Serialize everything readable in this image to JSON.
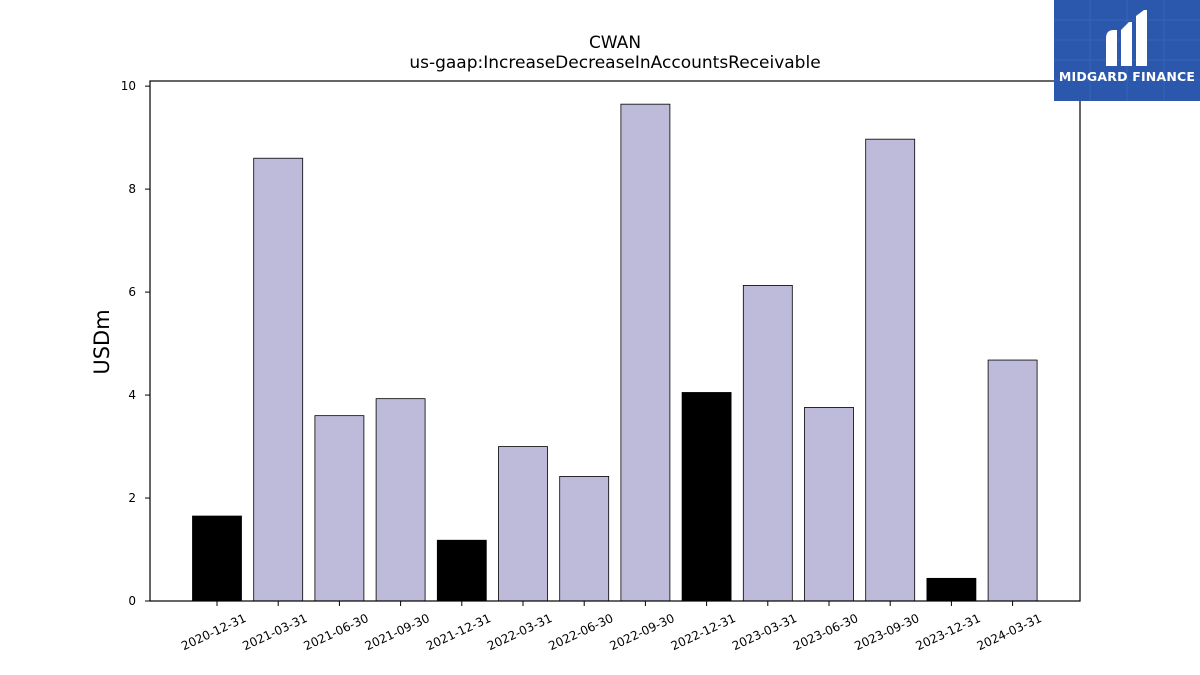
{
  "chart_data": {
    "type": "bar",
    "title": "CWAN",
    "subtitle": "us-gaap:IncreaseDecreaseInAccountsReceivable",
    "xlabel": "",
    "ylabel": "USDm",
    "ylim": [
      0,
      10
    ],
    "yticks": [
      0,
      2,
      4,
      6,
      8,
      10
    ],
    "grid": false,
    "categories": [
      "2020-12-31",
      "2021-03-31",
      "2021-06-30",
      "2021-09-30",
      "2021-12-31",
      "2022-03-31",
      "2022-06-30",
      "2022-09-30",
      "2022-12-31",
      "2023-03-31",
      "2023-06-30",
      "2023-09-30",
      "2023-12-31",
      "2024-03-31"
    ],
    "values": [
      1.65,
      8.6,
      3.6,
      3.93,
      1.18,
      3.0,
      2.42,
      9.65,
      4.05,
      6.13,
      3.76,
      8.97,
      0.44,
      4.68
    ],
    "bar_colors": [
      "#000000",
      "#bebbda",
      "#bebbda",
      "#bebbda",
      "#000000",
      "#bebbda",
      "#bebbda",
      "#bebbda",
      "#000000",
      "#bebbda",
      "#bebbda",
      "#bebbda",
      "#000000",
      "#bebbda"
    ]
  },
  "logo": {
    "text": "MIDGARD FINANCE",
    "background": "#2b58ac",
    "icon": "midgard-m-icon"
  }
}
